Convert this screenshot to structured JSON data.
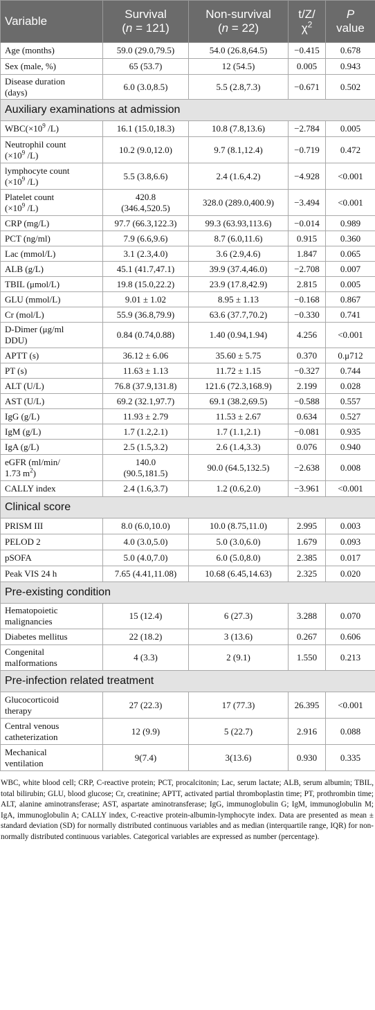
{
  "header": {
    "variable": "Variable",
    "survival": "Survival",
    "survival_n": "121",
    "nonsurvival": "Non-survival",
    "nonsurvival_n": "22",
    "n_prefix": "(",
    "n_eq": " = ",
    "n_suffix": ")",
    "n_letter": "n",
    "stat_a": "t/Z/",
    "stat_b": "χ",
    "stat_sup": "2",
    "p_letter": "P",
    "p_word": "value"
  },
  "rows": {
    "age": {
      "label": "Age (months)",
      "s": "59.0 (29.0,79.5)",
      "n": "54.0 (26.8,64.5)",
      "t": "−0.415",
      "p": "0.678"
    },
    "sex": {
      "label": "Sex (male, %)",
      "s": "65 (53.7)",
      "n": "12 (54.5)",
      "t": "0.005",
      "p": "0.943"
    },
    "duration": {
      "label_a": "Disease duration",
      "label_b": "(days)",
      "s": "6.0 (3.0,8.5)",
      "n": "5.5 (2.8,7.3)",
      "t": "−0.671",
      "p": "0.502"
    },
    "wbc": {
      "label_a": "WBC(×10",
      "label_sup": "9",
      "label_b": " /L)",
      "s": "16.1 (15.0,18.3)",
      "n": "10.8 (7.8,13.6)",
      "t": "−2.784",
      "p": "0.005"
    },
    "neut": {
      "label_a": "Neutrophil count",
      "label_b": "(×10",
      "label_sup": "9",
      "label_c": " /L)",
      "s": "10.2 (9.0,12.0)",
      "n": "9.7 (8.1,12.4)",
      "t": "−0.719",
      "p": "0.472"
    },
    "lymph": {
      "label_a": "lymphocyte count",
      "label_b": "(×10",
      "label_sup": "9",
      "label_c": " /L)",
      "s": "5.5 (3.8,6.6)",
      "n": "2.4 (1.6,4.2)",
      "t": "−4.928",
      "p": "<0.001"
    },
    "plt": {
      "label_a": "Platelet count",
      "label_b": "(×10",
      "label_sup": "9",
      "label_c": " /L)",
      "s_a": "420.8",
      "s_b": "(346.4,520.5)",
      "n": "328.0 (289.0,400.9)",
      "t": "−3.494",
      "p": "<0.001"
    },
    "crp": {
      "label": "CRP (mg/L)",
      "s": "97.7 (66.3,122.3)",
      "n": "99.3 (63.93,113.6)",
      "t": "−0.014",
      "p": "0.989"
    },
    "pct": {
      "label": "PCT (ng/ml)",
      "s": "7.9 (6.6,9.6)",
      "n": "8.7 (6.0,11.6)",
      "t": "0.915",
      "p": "0.360"
    },
    "lac": {
      "label": "Lac (mmol/L)",
      "s": "3.1 (2.3,4.0)",
      "n": "3.6 (2.9,4.6)",
      "t": "1.847",
      "p": "0.065"
    },
    "alb": {
      "label": "ALB (g/L)",
      "s": "45.1 (41.7,47.1)",
      "n": "39.9 (37.4,46.0)",
      "t": "−2.708",
      "p": "0.007"
    },
    "tbil": {
      "label": "TBIL (μmol/L)",
      "s": "19.8 (15.0,22.2)",
      "n": "23.9 (17.8,42.9)",
      "t": "2.815",
      "p": "0.005"
    },
    "glu": {
      "label": "GLU (mmol/L)",
      "s": "9.01 ± 1.02",
      "n": "8.95 ± 1.13",
      "t": "−0.168",
      "p": "0.867"
    },
    "cr": {
      "label": "Cr (mol/L)",
      "s": "55.9 (36.8,79.9)",
      "n": "63.6 (37.7,70.2)",
      "t": "−0.330",
      "p": "0.741"
    },
    "ddimer": {
      "label_a": "D-Dimer (μg/ml",
      "label_b": "DDU)",
      "s": "0.84 (0.74,0.88)",
      "n": "1.40 (0.94,1.94)",
      "t": "4.256",
      "p": "<0.001"
    },
    "aptt": {
      "label": "APTT (s)",
      "s": "36.12 ± 6.06",
      "n": "35.60 ± 5.75",
      "t": "0.370",
      "p": "0.μ712"
    },
    "pt": {
      "label": "PT (s)",
      "s": "11.63 ± 1.13",
      "n": "11.72 ± 1.15",
      "t": "−0.327",
      "p": "0.744"
    },
    "alt": {
      "label": "ALT (U/L)",
      "s": "76.8 (37.9,131.8)",
      "n": "121.6 (72.3,168.9)",
      "t": "2.199",
      "p": "0.028"
    },
    "ast": {
      "label": "AST (U/L)",
      "s": "69.2 (32.1,97.7)",
      "n": "69.1 (38.2,69.5)",
      "t": "−0.588",
      "p": "0.557"
    },
    "igg": {
      "label": "IgG (g/L)",
      "s": "11.93 ± 2.79",
      "n": "11.53 ± 2.67",
      "t": "0.634",
      "p": "0.527"
    },
    "igm": {
      "label": "IgM (g/L)",
      "s": "1.7 (1.2,2.1)",
      "n": "1.7 (1.1,2.1)",
      "t": "−0.081",
      "p": "0.935"
    },
    "iga": {
      "label": "IgA (g/L)",
      "s": "2.5 (1.5,3.2)",
      "n": "2.6 (1.4,3.3)",
      "t": "0.076",
      "p": "0.940"
    },
    "egfr": {
      "label_a": "eGFR (ml/min/",
      "label_b": "1.73 m",
      "label_sup": "2",
      "label_c": ")",
      "s_a": "140.0",
      "s_b": "(90.5,181.5)",
      "n": "90.0 (64.5,132.5)",
      "t": "−2.638",
      "p": "0.008"
    },
    "cally": {
      "label": "CALLY index",
      "s": "2.4 (1.6,3.7)",
      "n": "1.2 (0.6,2.0)",
      "t": "−3.961",
      "p": "<0.001"
    },
    "prism": {
      "label": "PRISM III",
      "s": "8.0 (6.0,10.0)",
      "n": "10.0 (8.75,11.0)",
      "t": "2.995",
      "p": "0.003"
    },
    "pelod": {
      "label": "PELOD 2",
      "s": "4.0 (3.0,5.0)",
      "n": "5.0 (3.0,6.0)",
      "t": "1.679",
      "p": "0.093"
    },
    "psofa": {
      "label": "pSOFA",
      "s": "5.0 (4.0,7.0)",
      "n": "6.0 (5.0,8.0)",
      "t": "2.385",
      "p": "0.017"
    },
    "vis": {
      "label": "Peak VIS 24 h",
      "s": "7.65 (4.41,11.08)",
      "n": "10.68 (6.45,14.63)",
      "t": "2.325",
      "p": "0.020"
    },
    "hema": {
      "label_a": "Hematopoietic",
      "label_b": "malignancies",
      "s": "15 (12.4)",
      "n": "6 (27.3)",
      "t": "3.288",
      "p": "0.070"
    },
    "diab": {
      "label": "Diabetes mellitus",
      "s": "22 (18.2)",
      "n": "3 (13.6)",
      "t": "0.267",
      "p": "0.606"
    },
    "cong": {
      "label_a": "Congenital",
      "label_b": "malformations",
      "s": "4 (3.3)",
      "n": "2 (9.1)",
      "t": "1.550",
      "p": "0.213"
    },
    "gluco": {
      "label_a": "Glucocorticoid",
      "label_b": "therapy",
      "s": "27 (22.3)",
      "n": "17 (77.3)",
      "t": "26.395",
      "p": "<0.001"
    },
    "cvc": {
      "label_a": "Central venous",
      "label_b": "catheterization",
      "s": "12 (9.9)",
      "n": "5 (22.7)",
      "t": "2.916",
      "p": "0.088"
    },
    "mv": {
      "label_a": "Mechanical",
      "label_b": "ventilation",
      "s": "9(7.4)",
      "n": "3(13.6)",
      "t": "0.930",
      "p": "0.335"
    }
  },
  "sections": {
    "aux": "Auxiliary examinations at admission",
    "clinical": "Clinical score",
    "pre": "Pre-existing condition",
    "treat": "Pre-infection related treatment"
  },
  "footnote": "WBC, white blood cell; CRP, C-reactive protein; PCT, procalcitonin; Lac, serum lactate; ALB, serum albumin; TBIL, total bilirubin; GLU, blood glucose; Cr, creatinine; APTT, activated partial thromboplastin time; PT, prothrombin time; ALT, alanine aminotransferase; AST, aspartate aminotransferase; IgG, immunoglobulin G; IgM, immunoglobulin M; IgA, immunoglobulin A; CALLY index, C-reactive protein-albumin-lymphocyte index. Data are presented as mean ± standard deviation (SD) for normally distributed continuous variables and as median (interquartile range, IQR) for non-normally distributed continuous variables. Categorical variables are expressed as number (percentage)."
}
